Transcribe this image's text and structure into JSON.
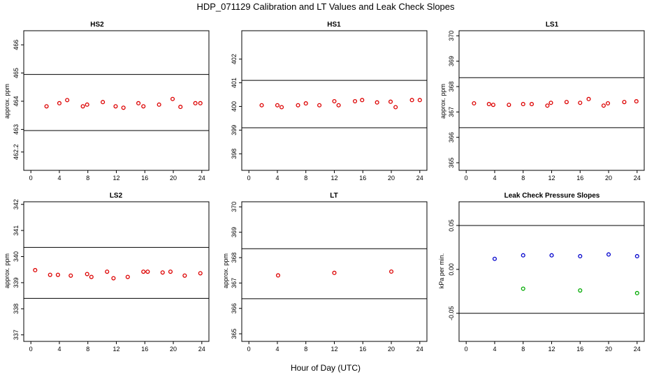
{
  "figure": {
    "title": "HDP_071129  Calibration and LT Values and Leak Check Slopes",
    "xlabel": "Hour of Day (UTC)"
  },
  "chart_data": [
    {
      "id": "hs2",
      "type": "scatter",
      "title": "HS2",
      "ylabel": "approx. ppm",
      "xlim": [
        -1,
        25
      ],
      "ylim": [
        461.55,
        466.5
      ],
      "xticks": [
        0,
        4,
        8,
        12,
        16,
        20,
        24
      ],
      "yticks": [
        462.2,
        463,
        464,
        465,
        466
      ],
      "ytick_labels": [
        "462.2",
        "463",
        "464",
        "465",
        "466"
      ],
      "hlines": [
        464.95,
        462.96
      ],
      "series": [
        {
          "name": "calibration",
          "color": "#dd0000",
          "x": [
            2.2,
            4.0,
            5.1,
            7.3,
            7.9,
            10.1,
            11.9,
            13.0,
            15.1,
            15.8,
            18.0,
            19.9,
            21.0,
            23.1,
            23.8
          ],
          "y": [
            463.82,
            463.93,
            464.04,
            463.82,
            463.88,
            463.97,
            463.82,
            463.77,
            463.93,
            463.82,
            463.88,
            464.08,
            463.8,
            463.93,
            463.93
          ]
        }
      ]
    },
    {
      "id": "hs1",
      "type": "scatter",
      "title": "HS1",
      "ylabel": "",
      "xlim": [
        -1,
        25
      ],
      "ylim": [
        397.3,
        403.2
      ],
      "xticks": [
        0,
        4,
        8,
        12,
        16,
        20,
        24
      ],
      "yticks": [
        398,
        399,
        400,
        401,
        402
      ],
      "ytick_labels": [
        "398",
        "399",
        "400",
        "401",
        "402"
      ],
      "hlines": [
        401.1,
        399.1
      ],
      "series": [
        {
          "name": "calibration",
          "color": "#dd0000",
          "x": [
            1.8,
            4.0,
            4.6,
            6.9,
            8.0,
            9.9,
            12.0,
            12.6,
            14.9,
            15.9,
            18.0,
            19.9,
            20.6,
            22.9,
            24.0
          ],
          "y": [
            400.05,
            400.05,
            399.97,
            400.05,
            400.13,
            400.05,
            400.22,
            400.05,
            400.22,
            400.27,
            400.17,
            400.2,
            399.97,
            400.27,
            400.27
          ]
        }
      ]
    },
    {
      "id": "ls1",
      "type": "scatter",
      "title": "LS1",
      "ylabel": "approx. ppm",
      "xlim": [
        -1,
        25
      ],
      "ylim": [
        364.7,
        370.2
      ],
      "xticks": [
        0,
        4,
        8,
        12,
        16,
        20,
        24
      ],
      "yticks": [
        365,
        366,
        367,
        368,
        369,
        370
      ],
      "ytick_labels": [
        "365",
        "366",
        "367",
        "368",
        "369",
        "370"
      ],
      "hlines": [
        368.35,
        366.38
      ],
      "series": [
        {
          "name": "calibration",
          "color": "#dd0000",
          "x": [
            1.1,
            3.2,
            3.8,
            6.0,
            8.0,
            9.2,
            11.4,
            11.9,
            14.1,
            16.0,
            17.2,
            19.3,
            19.9,
            22.2,
            23.9
          ],
          "y": [
            367.34,
            367.31,
            367.28,
            367.28,
            367.31,
            367.31,
            367.25,
            367.36,
            367.39,
            367.36,
            367.51,
            367.25,
            367.34,
            367.39,
            367.42
          ]
        }
      ]
    },
    {
      "id": "ls2",
      "type": "scatter",
      "title": "LS2",
      "ylabel": "approx. ppm",
      "xlim": [
        -1,
        25
      ],
      "ylim": [
        336.75,
        342.1
      ],
      "xticks": [
        0,
        4,
        8,
        12,
        16,
        20,
        24
      ],
      "yticks": [
        337,
        338,
        339,
        340,
        341,
        342
      ],
      "ytick_labels": [
        "337",
        "338",
        "339",
        "340",
        "341",
        "342"
      ],
      "hlines": [
        340.35,
        338.4
      ],
      "series": [
        {
          "name": "calibration",
          "color": "#dd0000",
          "x": [
            0.6,
            2.7,
            3.8,
            5.6,
            7.9,
            8.5,
            10.7,
            11.6,
            13.6,
            15.8,
            16.4,
            18.5,
            19.6,
            21.6,
            23.8
          ],
          "y": [
            339.48,
            339.3,
            339.3,
            339.27,
            339.33,
            339.22,
            339.42,
            339.17,
            339.22,
            339.42,
            339.42,
            339.39,
            339.42,
            339.27,
            339.36
          ]
        }
      ]
    },
    {
      "id": "lt",
      "type": "scatter",
      "title": "LT",
      "ylabel": "approx. ppm",
      "xlim": [
        -1,
        25
      ],
      "ylim": [
        364.7,
        370.2
      ],
      "xticks": [
        0,
        4,
        8,
        12,
        16,
        20,
        24
      ],
      "yticks": [
        365,
        366,
        367,
        368,
        369,
        370
      ],
      "ytick_labels": [
        "365",
        "366",
        "367",
        "368",
        "369",
        "370"
      ],
      "hlines": [
        368.35,
        366.38
      ],
      "series": [
        {
          "name": "long-term",
          "color": "#dd0000",
          "x": [
            4.1,
            12.0,
            20.0
          ],
          "y": [
            367.3,
            367.4,
            367.45
          ]
        }
      ]
    },
    {
      "id": "leak",
      "type": "scatter",
      "title": "Leak Check Pressure Slopes",
      "ylabel": "kPa per min.",
      "xlim": [
        -1,
        25
      ],
      "ylim": [
        -0.082,
        0.077
      ],
      "xticks": [
        0,
        4,
        8,
        12,
        16,
        20,
        24
      ],
      "yticks": [
        -0.05,
        0.0,
        0.05
      ],
      "ytick_labels": [
        "-0.05",
        "0.00",
        "0.05"
      ],
      "hlines": [
        0.05,
        -0.05
      ],
      "series": [
        {
          "name": "blue",
          "color": "#0000cc",
          "x": [
            4,
            8,
            12,
            16,
            20,
            24
          ],
          "y": [
            0.012,
            0.016,
            0.016,
            0.015,
            0.017,
            0.015
          ]
        },
        {
          "name": "green",
          "color": "#00aa00",
          "x": [
            8,
            16,
            24
          ],
          "y": [
            -0.022,
            -0.024,
            -0.027
          ]
        }
      ]
    }
  ]
}
